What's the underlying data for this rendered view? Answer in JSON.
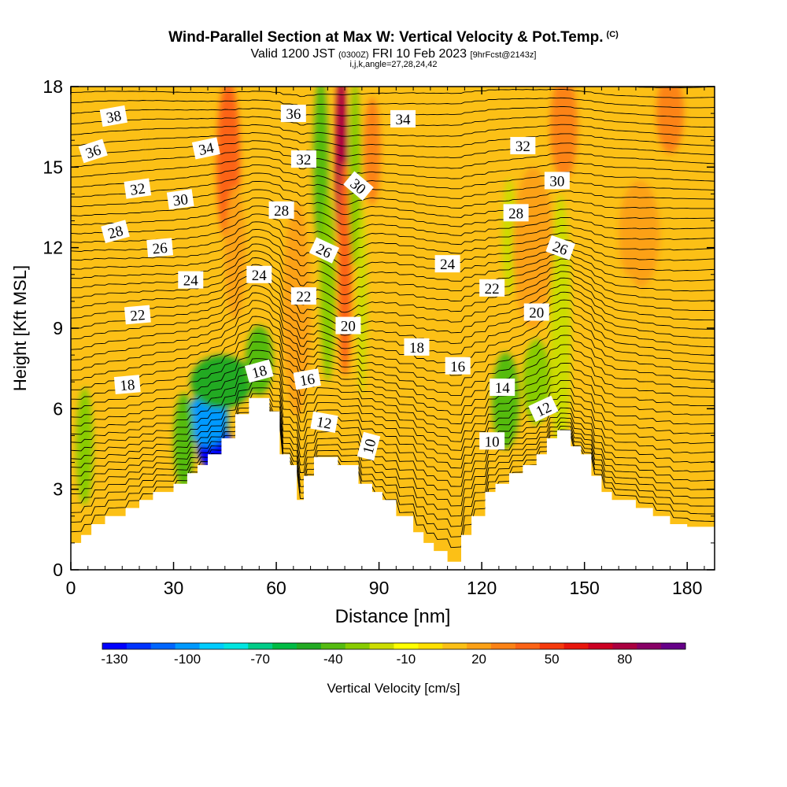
{
  "title": {
    "main": "Wind-Parallel Section at Max W: Vertical Velocity & Pot.Temp.",
    "copyright": "(C)",
    "valid_prefix": "Valid 1200 JST",
    "utc": "(0300Z)",
    "date": "FRI 10 Feb 2023",
    "forecast": "[9hrFcst@2143z]",
    "section_params": "i,j,k,angle=27,28,24,42"
  },
  "colors": {
    "terrain": "#ffffff",
    "isentrope": "#000000",
    "background_field": "#fcc016"
  },
  "chart_data": {
    "type": "heatmap",
    "xlabel": "Distance [nm]",
    "ylabel": "Height [Kft MSL]",
    "xlim": [
      0,
      188
    ],
    "ylim": [
      0,
      18
    ],
    "x_ticks": [
      0,
      30,
      60,
      90,
      120,
      150,
      180
    ],
    "y_ticks": [
      0,
      3,
      6,
      9,
      12,
      15,
      18
    ],
    "grid": false,
    "colorbar": {
      "label": "Vertical Velocity [cm/s]",
      "tick_labels": [
        "-130",
        "-100",
        "-70",
        "-40",
        "-10",
        "20",
        "50",
        "80"
      ],
      "bins": [
        {
          "value": -130,
          "color": "#0000ff"
        },
        {
          "value": -120,
          "color": "#0033ff"
        },
        {
          "value": -110,
          "color": "#0066ff"
        },
        {
          "value": -100,
          "color": "#0099ff"
        },
        {
          "value": -90,
          "color": "#00ccff"
        },
        {
          "value": -80,
          "color": "#00e5e0"
        },
        {
          "value": -70,
          "color": "#00cc88"
        },
        {
          "value": -60,
          "color": "#00bb44"
        },
        {
          "value": -50,
          "color": "#22aa22"
        },
        {
          "value": -40,
          "color": "#55bb11"
        },
        {
          "value": -30,
          "color": "#88cc00"
        },
        {
          "value": -20,
          "color": "#ccdd00"
        },
        {
          "value": -10,
          "color": "#ffff00"
        },
        {
          "value": 0,
          "color": "#ffe000"
        },
        {
          "value": 10,
          "color": "#fcc016"
        },
        {
          "value": 20,
          "color": "#fca116"
        },
        {
          "value": 30,
          "color": "#fc8316"
        },
        {
          "value": 40,
          "color": "#fc6316"
        },
        {
          "value": 50,
          "color": "#f53a0c"
        },
        {
          "value": 60,
          "color": "#e8160c"
        },
        {
          "value": 70,
          "color": "#cc0022"
        },
        {
          "value": 80,
          "color": "#aa0040"
        },
        {
          "value": 90,
          "color": "#880066"
        },
        {
          "value": 100,
          "color": "#660088"
        }
      ]
    },
    "terrain_height": [
      [
        0,
        1.0
      ],
      [
        3,
        1.0
      ],
      [
        3,
        1.3
      ],
      [
        6,
        1.3
      ],
      [
        6,
        1.7
      ],
      [
        10,
        1.7
      ],
      [
        10,
        2.0
      ],
      [
        16,
        2.0
      ],
      [
        16,
        2.3
      ],
      [
        20,
        2.3
      ],
      [
        20,
        2.6
      ],
      [
        24,
        2.6
      ],
      [
        24,
        2.9
      ],
      [
        30,
        2.9
      ],
      [
        30,
        3.2
      ],
      [
        34,
        3.2
      ],
      [
        34,
        3.6
      ],
      [
        37,
        3.6
      ],
      [
        37,
        3.9
      ],
      [
        40,
        3.9
      ],
      [
        40,
        4.3
      ],
      [
        44,
        4.3
      ],
      [
        44,
        4.9
      ],
      [
        48,
        4.9
      ],
      [
        48,
        5.8
      ],
      [
        52,
        5.8
      ],
      [
        52,
        6.4
      ],
      [
        58,
        6.4
      ],
      [
        58,
        5.9
      ],
      [
        61,
        5.9
      ],
      [
        61,
        4.3
      ],
      [
        64,
        4.3
      ],
      [
        64,
        3.9
      ],
      [
        66,
        3.9
      ],
      [
        66,
        2.6
      ],
      [
        68,
        2.6
      ],
      [
        68,
        3.5
      ],
      [
        71,
        3.5
      ],
      [
        71,
        4.2
      ],
      [
        78,
        4.2
      ],
      [
        78,
        3.9
      ],
      [
        84,
        3.9
      ],
      [
        84,
        3.2
      ],
      [
        88,
        3.2
      ],
      [
        88,
        2.9
      ],
      [
        91,
        2.9
      ],
      [
        91,
        2.6
      ],
      [
        95,
        2.6
      ],
      [
        95,
        2.0
      ],
      [
        100,
        2.0
      ],
      [
        100,
        1.4
      ],
      [
        103,
        1.4
      ],
      [
        103,
        1.0
      ],
      [
        106,
        1.0
      ],
      [
        106,
        0.7
      ],
      [
        110,
        0.7
      ],
      [
        110,
        0.3
      ],
      [
        114,
        0.3
      ],
      [
        114,
        1.3
      ],
      [
        117,
        1.3
      ],
      [
        117,
        2.0
      ],
      [
        121,
        2.0
      ],
      [
        121,
        2.9
      ],
      [
        124,
        2.9
      ],
      [
        124,
        3.2
      ],
      [
        128,
        3.2
      ],
      [
        128,
        3.6
      ],
      [
        132,
        3.6
      ],
      [
        132,
        3.9
      ],
      [
        136,
        3.9
      ],
      [
        136,
        4.3
      ],
      [
        139,
        4.3
      ],
      [
        139,
        4.9
      ],
      [
        142,
        4.9
      ],
      [
        142,
        5.2
      ],
      [
        146,
        5.2
      ],
      [
        146,
        4.6
      ],
      [
        149,
        4.6
      ],
      [
        149,
        4.3
      ],
      [
        152,
        4.3
      ],
      [
        152,
        3.5
      ],
      [
        155,
        3.5
      ],
      [
        155,
        2.9
      ],
      [
        158,
        2.9
      ],
      [
        158,
        2.6
      ],
      [
        165,
        2.6
      ],
      [
        165,
        2.3
      ],
      [
        170,
        2.3
      ],
      [
        170,
        2.0
      ],
      [
        175,
        2.0
      ],
      [
        175,
        1.7
      ],
      [
        180,
        1.7
      ],
      [
        180,
        1.6
      ],
      [
        188,
        1.6
      ]
    ],
    "vertical_velocity_features": [
      {
        "x": 42,
        "y": 4.6,
        "sx": 5,
        "sy": 0.9,
        "value": -130
      },
      {
        "x": 40,
        "y": 5.6,
        "sx": 6,
        "sy": 1.0,
        "value": -95
      },
      {
        "x": 44,
        "y": 7.0,
        "sx": 9,
        "sy": 1.0,
        "value": -45
      },
      {
        "x": 55,
        "y": 7.8,
        "sx": 4,
        "sy": 1.3,
        "value": -40
      },
      {
        "x": 33,
        "y": 4.8,
        "sx": 3,
        "sy": 1.8,
        "value": -35
      },
      {
        "x": 4,
        "y": 4.6,
        "sx": 2.5,
        "sy": 2.2,
        "value": -25
      },
      {
        "x": 46,
        "y": 15.2,
        "sx": 3.5,
        "sy": 3.0,
        "value": 40
      },
      {
        "x": 48,
        "y": 11.8,
        "sx": 3,
        "sy": 2.5,
        "value": 25
      },
      {
        "x": 66,
        "y": 9.7,
        "sx": 4,
        "sy": 4.0,
        "value": 25
      },
      {
        "x": 73,
        "y": 15.2,
        "sx": 2.2,
        "sy": 3.2,
        "value": -35
      },
      {
        "x": 75,
        "y": 10.5,
        "sx": 2.2,
        "sy": 3.5,
        "value": -25
      },
      {
        "x": 79,
        "y": 15.3,
        "sx": 1.8,
        "sy": 3.5,
        "value": 85
      },
      {
        "x": 80,
        "y": 11.2,
        "sx": 2,
        "sy": 4.0,
        "value": 45
      },
      {
        "x": 83,
        "y": 14.8,
        "sx": 1.7,
        "sy": 3.5,
        "value": -30
      },
      {
        "x": 85,
        "y": 10.0,
        "sx": 1.5,
        "sy": 3.5,
        "value": -15
      },
      {
        "x": 88,
        "y": 15.6,
        "sx": 2.5,
        "sy": 2.0,
        "value": 30
      },
      {
        "x": 127,
        "y": 6.3,
        "sx": 4,
        "sy": 1.8,
        "value": -35
      },
      {
        "x": 128,
        "y": 12.4,
        "sx": 2,
        "sy": 2.2,
        "value": -20
      },
      {
        "x": 136,
        "y": 7.0,
        "sx": 4,
        "sy": 1.6,
        "value": -30
      },
      {
        "x": 143,
        "y": 9.0,
        "sx": 3,
        "sy": 5.0,
        "value": -15
      },
      {
        "x": 144,
        "y": 16.5,
        "sx": 4,
        "sy": 2.0,
        "value": 35
      },
      {
        "x": 135,
        "y": 12.0,
        "sx": 6,
        "sy": 3.0,
        "value": 20
      },
      {
        "x": 166,
        "y": 12.5,
        "sx": 6,
        "sy": 2.0,
        "value": 22
      },
      {
        "x": 175,
        "y": 17.0,
        "sx": 4,
        "sy": 1.5,
        "value": 30
      },
      {
        "x": 162,
        "y": 8.0,
        "sx": 6,
        "sy": 3.0,
        "value": 15
      },
      {
        "x": 110,
        "y": 13.0,
        "sx": 10,
        "sy": 4.0,
        "value": 15
      },
      {
        "x": 12,
        "y": 16.0,
        "sx": 10,
        "sy": 3.0,
        "value": 12
      }
    ],
    "isentrope_labels": [
      {
        "text": "38",
        "x": 12.5,
        "y": 16.9,
        "rotation": -10
      },
      {
        "text": "36",
        "x": 6.5,
        "y": 15.6,
        "rotation": -18
      },
      {
        "text": "34",
        "x": 39.5,
        "y": 15.7,
        "rotation": -12
      },
      {
        "text": "32",
        "x": 19.5,
        "y": 14.2,
        "rotation": -8
      },
      {
        "text": "30",
        "x": 32,
        "y": 13.8,
        "rotation": -8
      },
      {
        "text": "28",
        "x": 13,
        "y": 12.6,
        "rotation": -15
      },
      {
        "text": "26",
        "x": 26,
        "y": 12.0,
        "rotation": -5
      },
      {
        "text": "24",
        "x": 35,
        "y": 10.8,
        "rotation": 0
      },
      {
        "text": "22",
        "x": 19.5,
        "y": 9.5,
        "rotation": -5
      },
      {
        "text": "18",
        "x": 16.5,
        "y": 6.9,
        "rotation": -5
      },
      {
        "text": "36",
        "x": 65,
        "y": 17.0,
        "rotation": 0
      },
      {
        "text": "32",
        "x": 68,
        "y": 15.3,
        "rotation": 0
      },
      {
        "text": "28",
        "x": 61.5,
        "y": 13.4,
        "rotation": 0
      },
      {
        "text": "26",
        "x": 74,
        "y": 11.9,
        "rotation": 25
      },
      {
        "text": "24",
        "x": 55,
        "y": 11.0,
        "rotation": 0
      },
      {
        "text": "22",
        "x": 68,
        "y": 10.2,
        "rotation": 0
      },
      {
        "text": "20",
        "x": 81,
        "y": 9.1,
        "rotation": 0
      },
      {
        "text": "18",
        "x": 55,
        "y": 7.4,
        "rotation": -15
      },
      {
        "text": "16",
        "x": 69,
        "y": 7.1,
        "rotation": -10
      },
      {
        "text": "12",
        "x": 74,
        "y": 5.5,
        "rotation": 10
      },
      {
        "text": "10",
        "x": 87,
        "y": 4.6,
        "rotation": -75
      },
      {
        "text": "30",
        "x": 84,
        "y": 14.3,
        "rotation": 40
      },
      {
        "text": "34",
        "x": 97,
        "y": 16.8,
        "rotation": 0
      },
      {
        "text": "24",
        "x": 110,
        "y": 11.4,
        "rotation": 0
      },
      {
        "text": "18",
        "x": 101,
        "y": 8.3,
        "rotation": 0
      },
      {
        "text": "16",
        "x": 113,
        "y": 7.6,
        "rotation": 0
      },
      {
        "text": "22",
        "x": 123,
        "y": 10.5,
        "rotation": 0
      },
      {
        "text": "14",
        "x": 126,
        "y": 6.8,
        "rotation": 0
      },
      {
        "text": "10",
        "x": 123,
        "y": 4.8,
        "rotation": 0
      },
      {
        "text": "32",
        "x": 132,
        "y": 15.8,
        "rotation": 0
      },
      {
        "text": "28",
        "x": 130,
        "y": 13.3,
        "rotation": 0
      },
      {
        "text": "30",
        "x": 142,
        "y": 14.5,
        "rotation": 0
      },
      {
        "text": "26",
        "x": 143,
        "y": 12.0,
        "rotation": 20
      },
      {
        "text": "20",
        "x": 136,
        "y": 9.6,
        "rotation": 0
      },
      {
        "text": "12",
        "x": 138,
        "y": 6.0,
        "rotation": -25
      }
    ]
  }
}
